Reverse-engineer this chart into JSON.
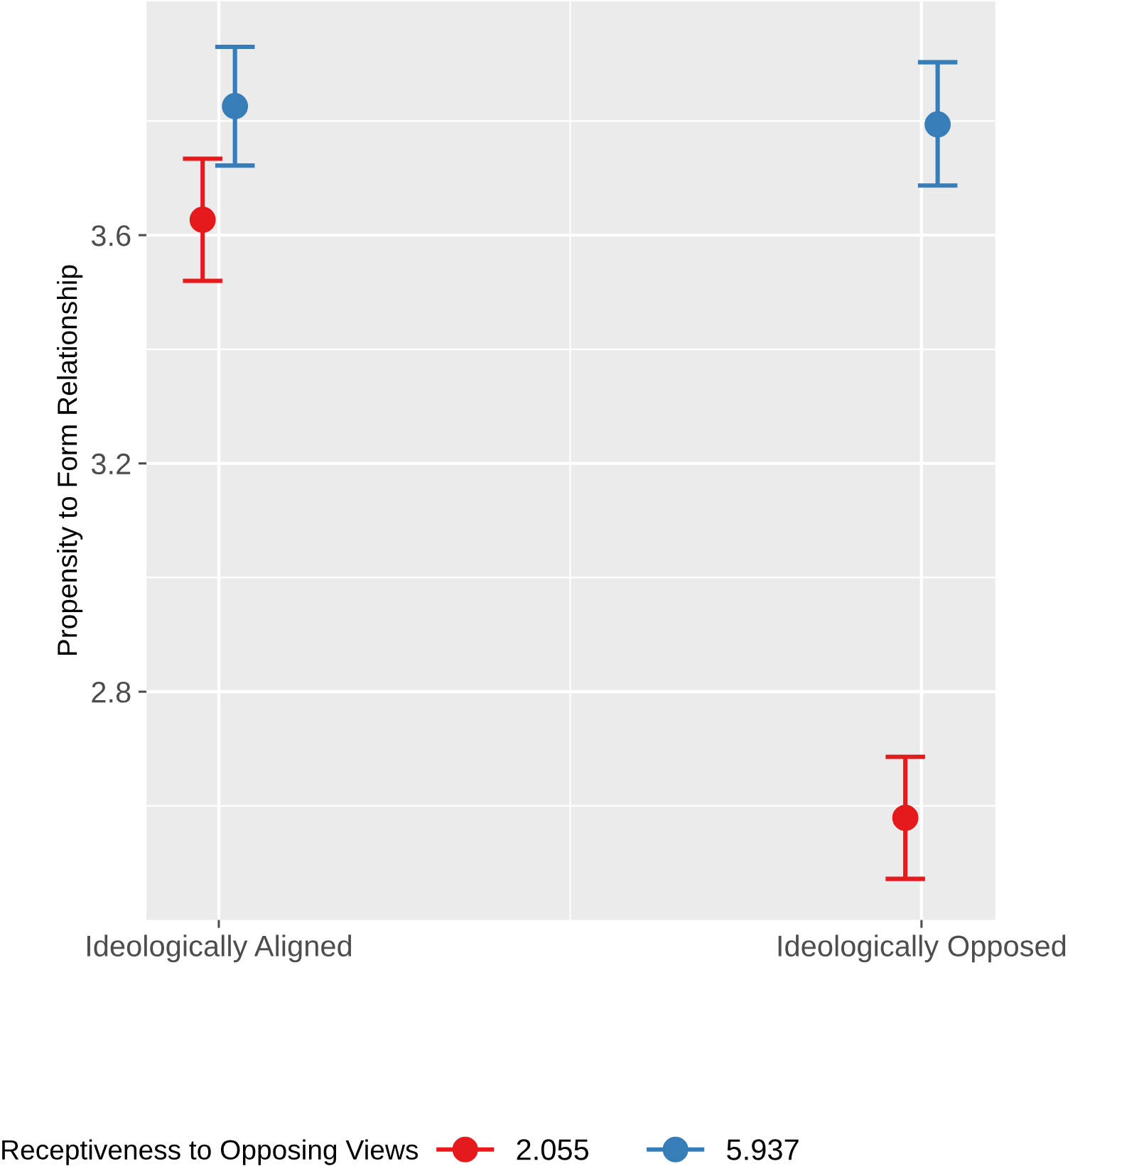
{
  "chart_data": {
    "type": "scatter",
    "ylabel": "Propensity to Form Relationship",
    "legend_title": "Receptiveness to Opposing Views",
    "categories": [
      "Ideologically Aligned",
      "Ideologically Opposed"
    ],
    "series": [
      {
        "name": "2.055",
        "color": "#e41a1c",
        "values": [
          3.627,
          2.579
        ],
        "errors": [
          [
            3.52,
            3.734
          ],
          [
            2.472,
            2.686
          ]
        ]
      },
      {
        "name": "5.937",
        "color": "#377eb8",
        "values": [
          3.826,
          3.794
        ],
        "errors": [
          [
            3.722,
            3.93
          ],
          [
            3.687,
            3.903
          ]
        ]
      }
    ],
    "ylim": [
      2.4,
      4.01
    ],
    "yticks": [
      2.8,
      3.2,
      3.6
    ],
    "grid": true,
    "legend": "bottom",
    "marker": "circle"
  }
}
